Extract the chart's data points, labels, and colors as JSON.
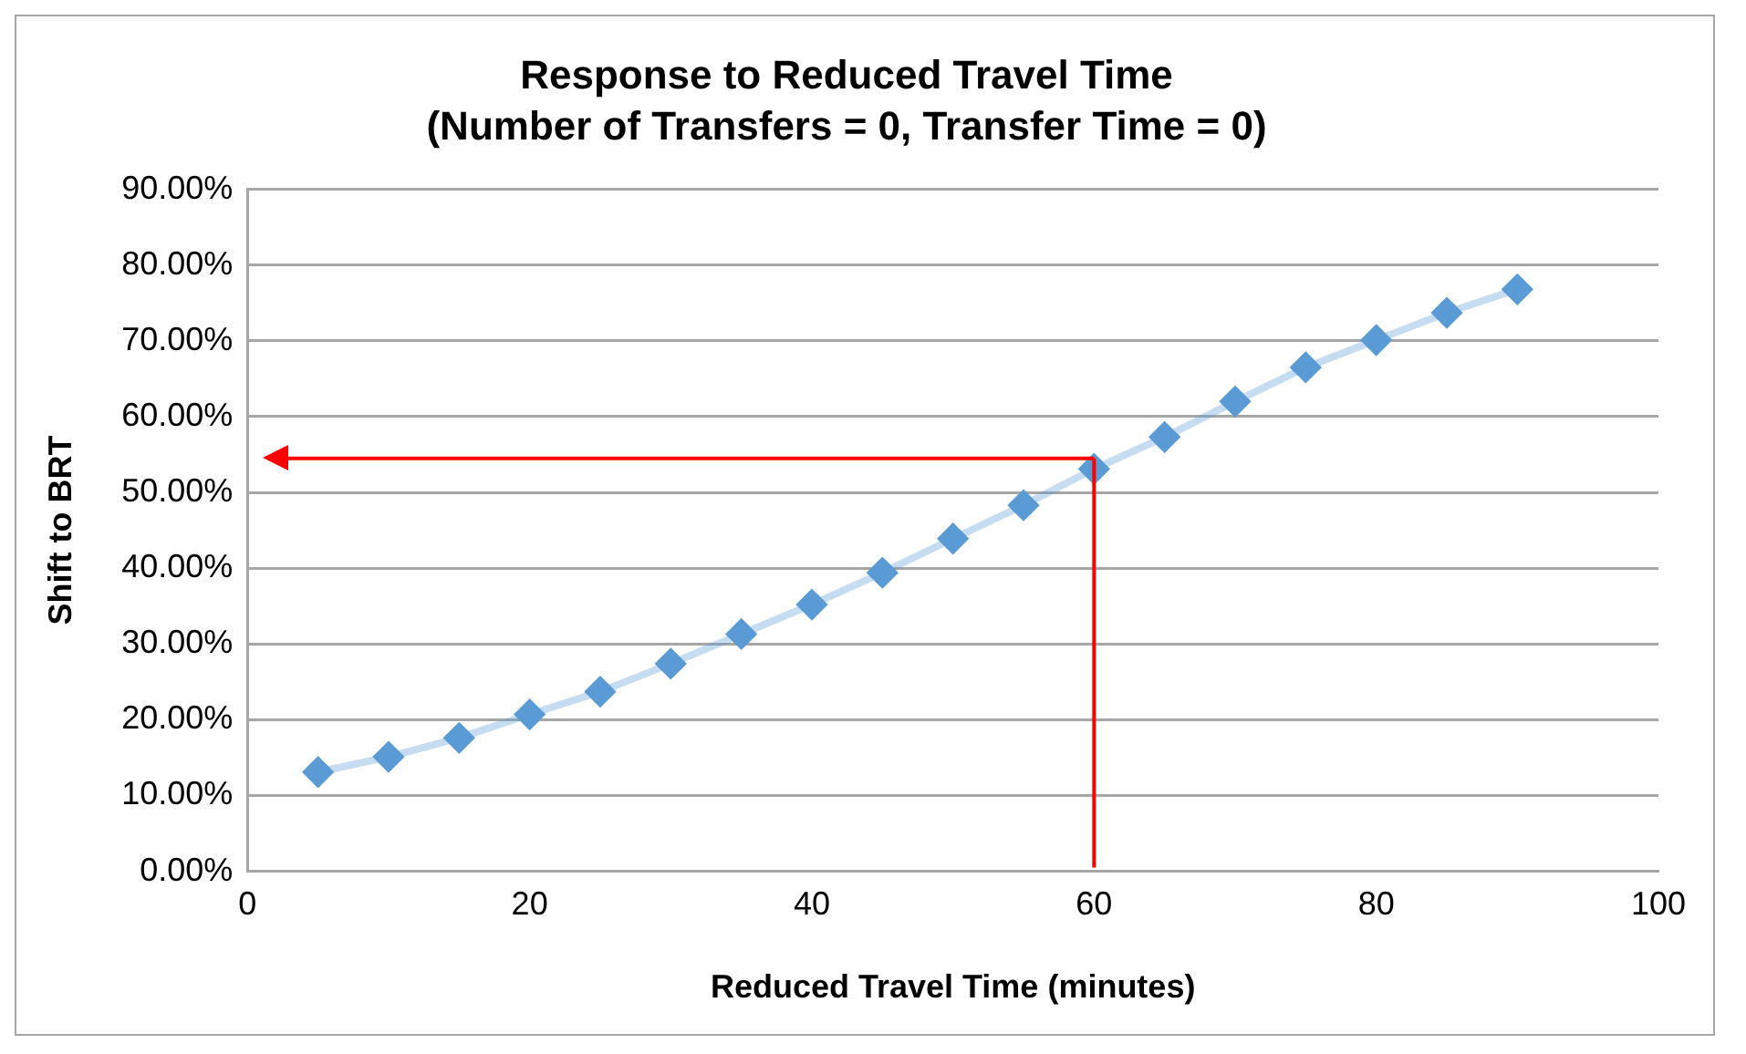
{
  "chart_data": {
    "type": "line",
    "title": "Response to Reduced Travel Time",
    "subtitle": "(Number of Transfers = 0, Transfer Time = 0)",
    "xlabel": "Reduced Travel Time (minutes)",
    "ylabel": "Shift to BRT",
    "x": [
      5,
      10,
      15,
      20,
      25,
      30,
      35,
      40,
      45,
      50,
      55,
      60,
      65,
      70,
      75,
      80,
      85,
      90
    ],
    "series": [
      {
        "color": "#5b9bd5",
        "values": [
          13.1,
          15.1,
          17.6,
          20.7,
          23.7,
          27.4,
          31.3,
          35.2,
          39.4,
          43.9,
          48.3,
          53.1,
          57.3,
          62.0,
          66.5,
          70.1,
          73.7,
          76.8
        ]
      }
    ],
    "xlim": [
      0,
      100
    ],
    "xticks": [
      0,
      20,
      40,
      60,
      80,
      100
    ],
    "ylim": [
      0,
      90
    ],
    "yticks": [
      {
        "value": 0,
        "label": "0.00%"
      },
      {
        "value": 10,
        "label": "10.00%"
      },
      {
        "value": 20,
        "label": "20.00%"
      },
      {
        "value": 30,
        "label": "30.00%"
      },
      {
        "value": 40,
        "label": "40.00%"
      },
      {
        "value": 50,
        "label": "50.00%"
      },
      {
        "value": 60,
        "label": "60.00%"
      },
      {
        "value": 70,
        "label": "70.00%"
      },
      {
        "value": 80,
        "label": "80.00%"
      },
      {
        "value": 90,
        "label": "90.00%"
      }
    ],
    "ref_lines": [
      {
        "axis": "x",
        "value": 60,
        "color": "#ff0000"
      },
      {
        "axis": "y",
        "value": 54.5,
        "color": "#ff0000"
      }
    ],
    "grid": "y",
    "legend": false,
    "marker": "diamond",
    "line_style": "solid"
  }
}
